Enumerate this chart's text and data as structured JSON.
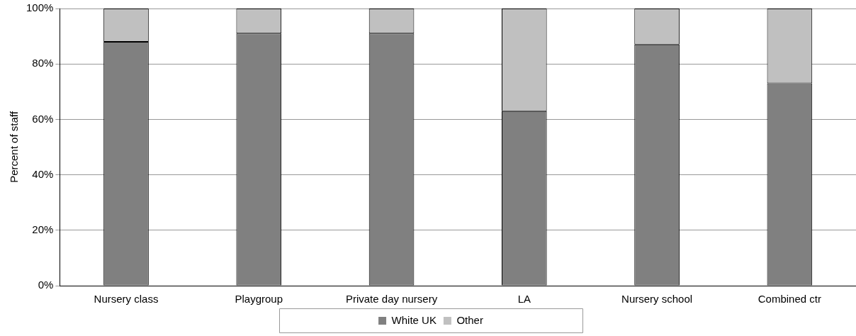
{
  "chart_data": {
    "type": "bar",
    "stacked": true,
    "ylabel": "Percent of staff",
    "categories": [
      "Nursery class",
      "Playgroup",
      "Private day nursery",
      "LA",
      "Nursery school",
      "Combined ctr"
    ],
    "series": [
      {
        "name": "White UK",
        "color": "#808080",
        "values": [
          88,
          91,
          91,
          63,
          87,
          73
        ]
      },
      {
        "name": "Other",
        "color": "#c0c0c0",
        "values": [
          12,
          9,
          9,
          37,
          13,
          27
        ]
      }
    ],
    "ylim": [
      0,
      100
    ],
    "yticks": [
      {
        "value": 0,
        "label": "0%"
      },
      {
        "value": 20,
        "label": "20%"
      },
      {
        "value": 40,
        "label": "40%"
      },
      {
        "value": 60,
        "label": "60%"
      },
      {
        "value": 80,
        "label": "80%"
      },
      {
        "value": 100,
        "label": "100%"
      }
    ],
    "grid": "y",
    "legend": "bottom"
  }
}
